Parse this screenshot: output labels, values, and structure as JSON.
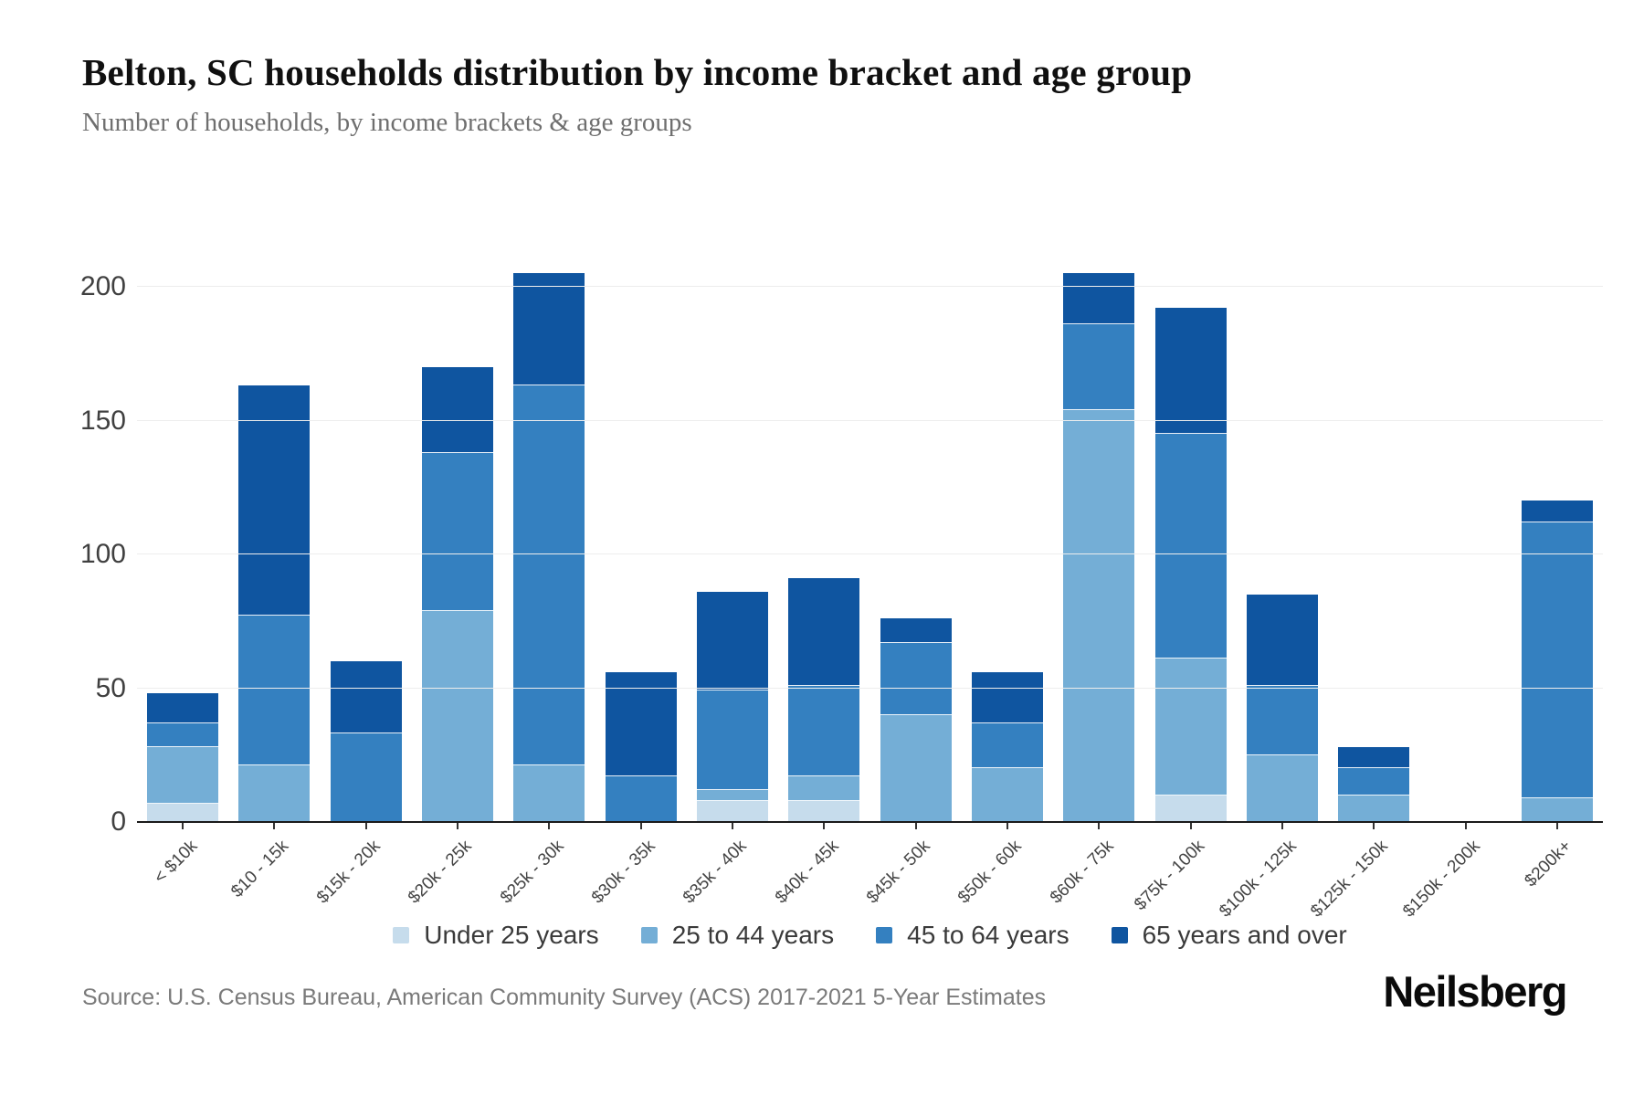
{
  "header": {
    "title": "Belton, SC households distribution by income bracket and age group",
    "subtitle": "Number of households, by income brackets & age groups"
  },
  "footer": {
    "source": "Source: U.S. Census Bureau, American Community Survey (ACS) 2017-2021 5-Year Estimates",
    "brand": "Neilsberg"
  },
  "colors": {
    "under_25": "#c6dcec",
    "age_25_44": "#74aed6",
    "age_45_64": "#3480c0",
    "age_65_plus": "#0f55a0",
    "gridline": "#ededed",
    "axis": "#1a1a1a",
    "y_label": "#404040",
    "x_label": "#444444",
    "title": "#101010",
    "subtitle": "#6f6f6f",
    "source": "#7a7a7a",
    "legend_text": "#3a3a3a"
  },
  "chart_data": {
    "type": "bar",
    "stacked": true,
    "title": "Belton, SC households distribution by income bracket and age group",
    "subtitle": "Number of households, by income brackets & age groups",
    "xlabel": "",
    "ylabel": "",
    "grid": true,
    "legend_position": "bottom",
    "ylim": [
      0,
      220
    ],
    "yticks": [
      0,
      50,
      100,
      150,
      200
    ],
    "categories": [
      "< $10k",
      "$10 - 15k",
      "$15k - 20k",
      "$20k - 25k",
      "$25k - 30k",
      "$30k - 35k",
      "$35k - 40k",
      "$40k - 45k",
      "$45k - 50k",
      "$50k - 60k",
      "$60k - 75k",
      "$75k - 100k",
      "$100k - 125k",
      "$125k - 150k",
      "$150k - 200k",
      "$200k+"
    ],
    "series": [
      {
        "name": "Under 25 years",
        "color_key": "under_25",
        "values": [
          7,
          0,
          0,
          0,
          0,
          0,
          8,
          8,
          0,
          0,
          0,
          10,
          0,
          0,
          0,
          0
        ]
      },
      {
        "name": "25 to 44 years",
        "color_key": "age_25_44",
        "values": [
          21,
          21,
          0,
          79,
          21,
          0,
          4,
          9,
          40,
          20,
          154,
          51,
          25,
          10,
          0,
          9
        ]
      },
      {
        "name": "45 to 64 years",
        "color_key": "age_45_64",
        "values": [
          9,
          56,
          33,
          59,
          142,
          17,
          37,
          34,
          27,
          17,
          32,
          84,
          26,
          10,
          0,
          103
        ]
      },
      {
        "name": "65 years and over",
        "color_key": "age_65_plus",
        "values": [
          11,
          86,
          27,
          32,
          42,
          39,
          37,
          40,
          9,
          19,
          19,
          47,
          34,
          8,
          0,
          8
        ]
      }
    ],
    "totals": [
      48,
      163,
      60,
      170,
      205,
      56,
      86,
      91,
      76,
      56,
      205,
      192,
      85,
      28,
      0,
      120
    ]
  }
}
